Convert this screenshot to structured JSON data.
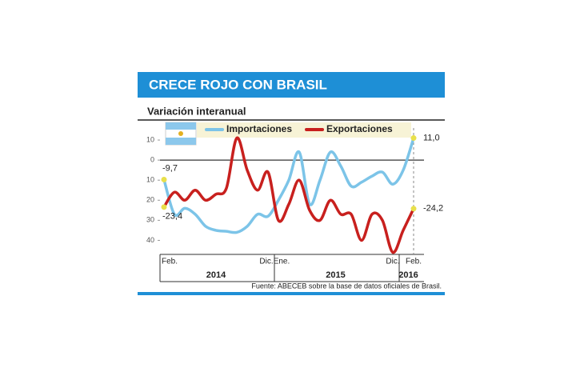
{
  "chart_data": {
    "type": "line",
    "title": "CRECE ROJO CON BRASIL",
    "subtitle": "Variación interanual",
    "source": "Fuente: ABECEB sobre la base de datos oficiales de Brasil.",
    "categories": [
      "Feb.",
      null,
      null,
      null,
      null,
      null,
      null,
      null,
      null,
      null,
      "Dic.",
      "Ene.",
      null,
      null,
      null,
      null,
      null,
      null,
      null,
      null,
      null,
      null,
      "Dic.",
      null,
      "Feb."
    ],
    "years": [
      {
        "label": "2014",
        "start": 0,
        "end": 10
      },
      {
        "label": "2015",
        "start": 11,
        "end": 22
      },
      {
        "label": "2016",
        "start": 23,
        "end": 24
      }
    ],
    "series": [
      {
        "name": "Importaciones",
        "color": "#7cc4e8",
        "values": [
          -9.7,
          -27,
          -24,
          -27,
          -33,
          -35,
          -35.5,
          -36,
          -33,
          -27,
          -28,
          -20,
          -10,
          4,
          -22,
          -10,
          4,
          -3,
          -13,
          -11,
          -8,
          -6,
          -12,
          -5,
          11.0
        ],
        "value_labels": [
          "-9,7",
          null,
          null,
          null,
          null,
          null,
          null,
          null,
          null,
          null,
          null,
          null,
          null,
          null,
          null,
          null,
          null,
          null,
          null,
          null,
          null,
          null,
          null,
          null,
          "11,0"
        ]
      },
      {
        "name": "Exportaciones",
        "color": "#c8201e",
        "values": [
          -23.4,
          -16,
          -20,
          -15,
          -20,
          -17,
          -14,
          11,
          -5,
          -15,
          -6,
          -30,
          -22,
          -10,
          -25,
          -30,
          -20,
          -27,
          -27,
          -40,
          -27,
          -30,
          -46,
          -35,
          -24.2
        ],
        "value_labels": [
          "-23,4",
          null,
          null,
          null,
          null,
          null,
          null,
          null,
          null,
          null,
          null,
          null,
          null,
          null,
          null,
          null,
          null,
          null,
          null,
          null,
          null,
          null,
          null,
          null,
          "-24,2"
        ]
      }
    ],
    "ylim": [
      -47,
      16
    ],
    "yticks": [
      10,
      0,
      {
        "value": -10,
        "label": "10"
      },
      {
        "value": -20,
        "label": "20"
      },
      {
        "value": -30,
        "label": "30"
      },
      {
        "value": -40,
        "label": "40"
      }
    ],
    "legend": "top"
  }
}
